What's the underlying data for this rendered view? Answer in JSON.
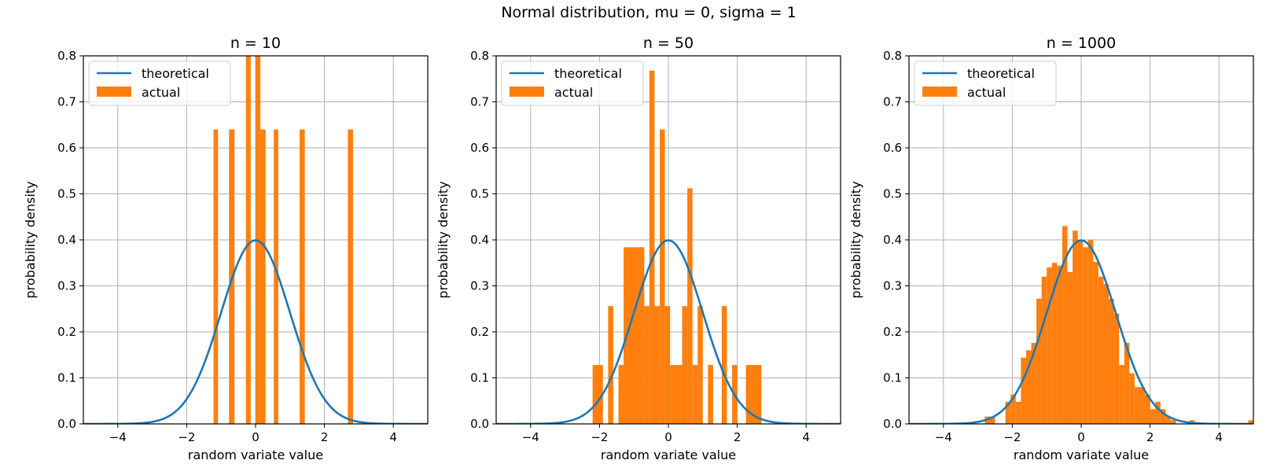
{
  "figure": {
    "title": "Normal distribution, mu = 0, sigma = 1",
    "colors": {
      "theoretical": "#1f77b4",
      "actual": "#ff7f0e",
      "grid": "#b0b0b0"
    }
  },
  "chart_data": [
    {
      "type": "bar",
      "title": "n = 10",
      "xlabel": "random variate value",
      "ylabel": "probability density",
      "xlim": [
        -5,
        5
      ],
      "ylim": [
        0,
        0.8
      ],
      "xticks": [
        -4,
        -2,
        0,
        2,
        4
      ],
      "xtick_labels": [
        "−4",
        "−2",
        "0",
        "2",
        "4"
      ],
      "yticks": [
        0.0,
        0.1,
        0.2,
        0.3,
        0.4,
        0.5,
        0.6,
        0.7,
        0.8
      ],
      "ytick_labels": [
        "0.0",
        "0.1",
        "0.2",
        "0.3",
        "0.4",
        "0.5",
        "0.6",
        "0.7",
        "0.8"
      ],
      "grid": true,
      "legend": {
        "placement": "upper-left",
        "entries": [
          "theoretical",
          "actual"
        ]
      },
      "theoretical": {
        "name": "theoretical",
        "function": "normal_pdf",
        "mu": 0,
        "sigma": 1
      },
      "actual": {
        "name": "actual",
        "bins": [
          {
            "x0": -1.22,
            "x1": -1.09,
            "h": 0.64
          },
          {
            "x0": -0.77,
            "x1": -0.61,
            "h": 0.64
          },
          {
            "x0": -0.28,
            "x1": -0.14,
            "h": 0.8
          },
          {
            "x0": 0.0,
            "x1": 0.14,
            "h": 0.8
          },
          {
            "x0": 0.14,
            "x1": 0.29,
            "h": 0.64
          },
          {
            "x0": 0.53,
            "x1": 0.66,
            "h": 0.64
          },
          {
            "x0": 1.28,
            "x1": 1.43,
            "h": 0.64
          },
          {
            "x0": 2.68,
            "x1": 2.83,
            "h": 0.64
          }
        ]
      }
    },
    {
      "type": "bar",
      "title": "n = 50",
      "xlabel": "random variate value",
      "ylabel": "probability density",
      "xlim": [
        -5,
        5
      ],
      "ylim": [
        0,
        0.8
      ],
      "xticks": [
        -4,
        -2,
        0,
        2,
        4
      ],
      "xtick_labels": [
        "−4",
        "−2",
        "0",
        "2",
        "4"
      ],
      "yticks": [
        0.0,
        0.1,
        0.2,
        0.3,
        0.4,
        0.5,
        0.6,
        0.7,
        0.8
      ],
      "ytick_labels": [
        "0.0",
        "0.1",
        "0.2",
        "0.3",
        "0.4",
        "0.5",
        "0.6",
        "0.7",
        "0.8"
      ],
      "grid": true,
      "legend": {
        "placement": "upper-left",
        "entries": [
          "theoretical",
          "actual"
        ]
      },
      "theoretical": {
        "name": "theoretical",
        "function": "normal_pdf",
        "mu": 0,
        "sigma": 1
      },
      "actual": {
        "name": "actual",
        "bins": [
          {
            "x0": -2.2,
            "x1": -1.9,
            "h": 0.128
          },
          {
            "x0": -1.75,
            "x1": -1.6,
            "h": 0.256
          },
          {
            "x0": -1.45,
            "x1": -1.3,
            "h": 0.128
          },
          {
            "x0": -1.3,
            "x1": -0.7,
            "h": 0.384
          },
          {
            "x0": -0.7,
            "x1": -0.55,
            "h": 0.256
          },
          {
            "x0": -0.55,
            "x1": -0.4,
            "h": 0.768
          },
          {
            "x0": -0.4,
            "x1": -0.25,
            "h": 0.256
          },
          {
            "x0": -0.25,
            "x1": -0.1,
            "h": 0.64
          },
          {
            "x0": -0.1,
            "x1": 0.05,
            "h": 0.256
          },
          {
            "x0": 0.05,
            "x1": 0.4,
            "h": 0.128
          },
          {
            "x0": 0.4,
            "x1": 0.55,
            "h": 0.256
          },
          {
            "x0": 0.55,
            "x1": 0.7,
            "h": 0.512
          },
          {
            "x0": 0.7,
            "x1": 0.85,
            "h": 0.128
          },
          {
            "x0": 0.85,
            "x1": 1.0,
            "h": 0.256
          },
          {
            "x0": 1.15,
            "x1": 1.3,
            "h": 0.128
          },
          {
            "x0": 1.55,
            "x1": 1.7,
            "h": 0.256
          },
          {
            "x0": 1.85,
            "x1": 2.0,
            "h": 0.128
          },
          {
            "x0": 2.25,
            "x1": 2.7,
            "h": 0.128
          }
        ]
      }
    },
    {
      "type": "bar",
      "title": "n = 1000",
      "xlabel": "random variate value",
      "ylabel": "probability density",
      "xlim": [
        -5,
        5
      ],
      "ylim": [
        0,
        0.8
      ],
      "xticks": [
        -4,
        -2,
        0,
        2,
        4
      ],
      "xtick_labels": [
        "−4",
        "−2",
        "0",
        "2",
        "4"
      ],
      "yticks": [
        0.0,
        0.1,
        0.2,
        0.3,
        0.4,
        0.5,
        0.6,
        0.7,
        0.8
      ],
      "ytick_labels": [
        "0.0",
        "0.1",
        "0.2",
        "0.3",
        "0.4",
        "0.5",
        "0.6",
        "0.7",
        "0.8"
      ],
      "grid": true,
      "legend": {
        "placement": "upper-left",
        "entries": [
          "theoretical",
          "actual"
        ]
      },
      "theoretical": {
        "name": "theoretical",
        "function": "normal_pdf",
        "mu": 0,
        "sigma": 1
      },
      "actual": {
        "name": "actual",
        "bins": [
          {
            "x0": -2.8,
            "x1": -2.5,
            "h": 0.016
          },
          {
            "x0": -2.2,
            "x1": -2.05,
            "h": 0.048
          },
          {
            "x0": -2.05,
            "x1": -1.9,
            "h": 0.064
          },
          {
            "x0": -1.9,
            "x1": -1.75,
            "h": 0.048
          },
          {
            "x0": -1.75,
            "x1": -1.6,
            "h": 0.144
          },
          {
            "x0": -1.6,
            "x1": -1.45,
            "h": 0.16
          },
          {
            "x0": -1.45,
            "x1": -1.3,
            "h": 0.176
          },
          {
            "x0": -1.3,
            "x1": -1.15,
            "h": 0.272
          },
          {
            "x0": -1.15,
            "x1": -1.0,
            "h": 0.32
          },
          {
            "x0": -1.0,
            "x1": -0.85,
            "h": 0.34
          },
          {
            "x0": -0.85,
            "x1": -0.7,
            "h": 0.35
          },
          {
            "x0": -0.7,
            "x1": -0.55,
            "h": 0.344
          },
          {
            "x0": -0.55,
            "x1": -0.4,
            "h": 0.43
          },
          {
            "x0": -0.4,
            "x1": -0.25,
            "h": 0.33
          },
          {
            "x0": -0.25,
            "x1": -0.1,
            "h": 0.42
          },
          {
            "x0": -0.1,
            "x1": 0.05,
            "h": 0.4
          },
          {
            "x0": 0.05,
            "x1": 0.2,
            "h": 0.384
          },
          {
            "x0": 0.2,
            "x1": 0.35,
            "h": 0.4
          },
          {
            "x0": 0.35,
            "x1": 0.5,
            "h": 0.352
          },
          {
            "x0": 0.5,
            "x1": 0.65,
            "h": 0.32
          },
          {
            "x0": 0.65,
            "x1": 0.8,
            "h": 0.304
          },
          {
            "x0": 0.8,
            "x1": 0.95,
            "h": 0.272
          },
          {
            "x0": 0.95,
            "x1": 1.1,
            "h": 0.24
          },
          {
            "x0": 1.1,
            "x1": 1.25,
            "h": 0.128
          },
          {
            "x0": 1.25,
            "x1": 1.4,
            "h": 0.176
          },
          {
            "x0": 1.4,
            "x1": 1.55,
            "h": 0.11
          },
          {
            "x0": 1.55,
            "x1": 1.7,
            "h": 0.08
          },
          {
            "x0": 1.7,
            "x1": 1.85,
            "h": 0.08
          },
          {
            "x0": 1.85,
            "x1": 2.0,
            "h": 0.064
          },
          {
            "x0": 2.0,
            "x1": 2.15,
            "h": 0.032
          },
          {
            "x0": 2.15,
            "x1": 2.3,
            "h": 0.048
          },
          {
            "x0": 2.3,
            "x1": 2.45,
            "h": 0.032
          },
          {
            "x0": 2.45,
            "x1": 2.6,
            "h": 0.016
          },
          {
            "x0": 2.6,
            "x1": 2.75,
            "h": 0.008
          },
          {
            "x0": 3.15,
            "x1": 3.3,
            "h": 0.008
          },
          {
            "x0": 4.85,
            "x1": 5.0,
            "h": 0.008
          }
        ]
      }
    }
  ]
}
